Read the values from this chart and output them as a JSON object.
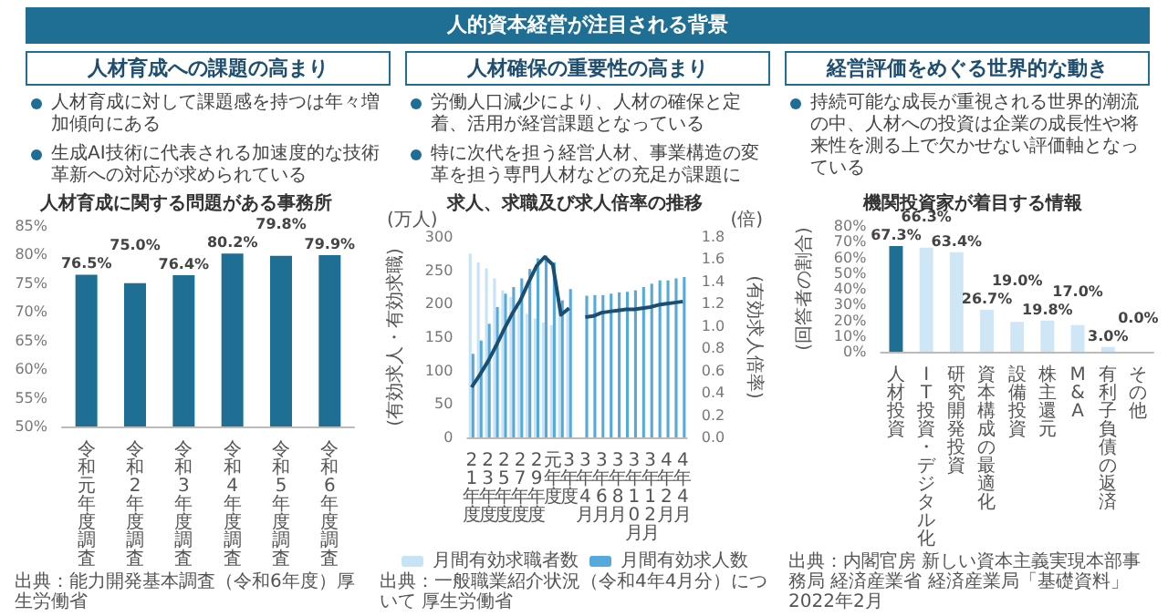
{
  "chart_data": [
    {
      "type": "other",
      "title": "人的資本経営が注目される背景"
    },
    {
      "type": "other",
      "title": "人材育成への課題の高まり",
      "annotations": [
        "人材育成に対して課題感を持つは年々増加傾向にある",
        "生成AI技術に代表される加速度的な技術革新への対応が求められている"
      ]
    },
    {
      "type": "other",
      "title": "人材確保の重要性の高まり",
      "annotations": [
        "労働人口減少により、人材の確保と定着、活用が経営課題となっている",
        "特に次代を担う経営人材、事業構造の変革を担う専門人材などの充足が課題に"
      ]
    },
    {
      "type": "other",
      "title": "経営評価をめぐる世界的な動き",
      "annotations": [
        "持続可能な成長が重視される世界的潮流の中、人材への投資は企業の成長性や将来性を測る上で欠かせない評価軸となっている"
      ]
    },
    {
      "type": "bar",
      "title": "人材育成に関する問題がある事務所",
      "categories": [
        "令和元年度調査",
        "令和2年度調査",
        "令和3年度調査",
        "令和4年度調査",
        "令和5年度調査",
        "令和6年度調査"
      ],
      "values": [
        76.5,
        75.0,
        76.4,
        80.2,
        79.8,
        79.9
      ],
      "value_labels": [
        "76.5%",
        "75.0%",
        "76.4%",
        "80.2%",
        "79.8%",
        "79.9%"
      ],
      "color": "#1f6e94",
      "ylim": [
        50,
        85
      ],
      "yticks": [
        {
          "value": 50,
          "label": "50%"
        },
        {
          "value": 55,
          "label": "55%"
        },
        {
          "value": 60,
          "label": "60%"
        },
        {
          "value": 65,
          "label": "65%"
        },
        {
          "value": 70,
          "label": "70%"
        },
        {
          "value": 75,
          "label": "75%"
        },
        {
          "value": 80,
          "label": "80%"
        },
        {
          "value": 85,
          "label": "85%"
        }
      ],
      "annotations": [
        "出典：能力開発基本調査（令和6年度）厚生労働省"
      ]
    },
    {
      "type": "bar",
      "title": "求人、求職及び求人倍率の推移",
      "ylabel": "(有効求人・有効求職)",
      "y2label": "(有効求人倍率)",
      "categories": [
        "21年度",
        null,
        "23年度",
        null,
        "25年度",
        null,
        "27年度",
        null,
        "29年度",
        null,
        "元年度",
        null,
        "3年度",
        null,
        "3年4月",
        null,
        "3年6月",
        null,
        "3年8月",
        null,
        "3年10月",
        null,
        "3年12月",
        null,
        "4年2月",
        null,
        "4年4月"
      ],
      "series": [
        {
          "name": "月間有効求職者数",
          "color": "#c6e4f6",
          "values": [
            275,
            262,
            253,
            238,
            220,
            210,
            195,
            185,
            178,
            172,
            168,
            185,
            195,
            null,
            null,
            null,
            null,
            null,
            null,
            null,
            null,
            null,
            null,
            null,
            null,
            null,
            null
          ]
        },
        {
          "name": "月間有効求人数",
          "color": "#55aadb",
          "values": [
            125,
            145,
            170,
            195,
            215,
            225,
            238,
            252,
            268,
            272,
            262,
            205,
            222,
            null,
            212,
            213,
            213,
            215,
            217,
            218,
            220,
            225,
            230,
            235,
            235,
            238,
            240
          ]
        },
        {
          "type": "line",
          "axis": "y2",
          "color": "#1b4f72",
          "values": [
            0.45,
            0.56,
            0.68,
            0.82,
            0.97,
            1.11,
            1.23,
            1.39,
            1.54,
            1.62,
            1.55,
            1.1,
            1.16,
            null,
            1.08,
            1.09,
            1.12,
            1.13,
            1.14,
            1.15,
            1.15,
            1.16,
            1.17,
            1.19,
            1.2,
            1.21,
            1.22
          ]
        }
      ],
      "ylim": [
        0,
        300
      ],
      "yticks": [
        0,
        50,
        100,
        150,
        200,
        250,
        300
      ],
      "y2lim": [
        0,
        1.8
      ],
      "y2ticks": [
        {
          "value": 0,
          "label": "0.0"
        },
        0.2,
        0.4,
        0.6,
        0.8,
        {
          "value": 1,
          "label": "1.0"
        },
        1.2,
        1.4,
        1.6,
        1.8
      ],
      "legend": "bottom",
      "annotations": [
        "(万人)",
        "(倍)",
        "出典：一般職業紹介状況（令和4年4月分）について 厚生労働省"
      ]
    },
    {
      "type": "bar",
      "title": "機関投資家が着目する情報",
      "ylabel": "(回答者の割合)",
      "categories": [
        "人材投資",
        "IT投資・デジタル化",
        "研究開発投資",
        "資本構成の最適化",
        "設備投資",
        "株主還元",
        "M&A",
        "有利子負債の返済",
        "その他"
      ],
      "values": [
        67.3,
        66.3,
        63.4,
        26.7,
        19.0,
        19.8,
        17.0,
        3.0,
        0.0
      ],
      "value_labels": [
        "67.3%",
        "66.3%",
        "63.4%",
        "26.7%",
        "19.0%",
        "19.8%",
        "17.0%",
        "3.0%",
        "0.0%"
      ],
      "colors": [
        "#1f6e94",
        "#cfe6f7",
        "#cfe6f7",
        "#cfe6f7",
        "#cfe6f7",
        "#cfe6f7",
        "#cfe6f7",
        "#cfe6f7",
        "#cfe6f7"
      ],
      "ylim": [
        0,
        80
      ],
      "yticks": [
        {
          "value": 0,
          "label": "0%"
        },
        {
          "value": 10,
          "label": "10%"
        },
        {
          "value": 20,
          "label": "20%"
        },
        {
          "value": 30,
          "label": "30%"
        },
        {
          "value": 40,
          "label": "40%"
        },
        {
          "value": 50,
          "label": "50%"
        },
        {
          "value": 60,
          "label": "60%"
        },
        {
          "value": 70,
          "label": "70%"
        },
        {
          "value": 80,
          "label": "80%"
        }
      ],
      "annotations": [
        "出典：内閣官房 新しい資本主義実現本部事務局 経済産業省 経済産業局「基礎資料」2022年2月"
      ]
    }
  ]
}
